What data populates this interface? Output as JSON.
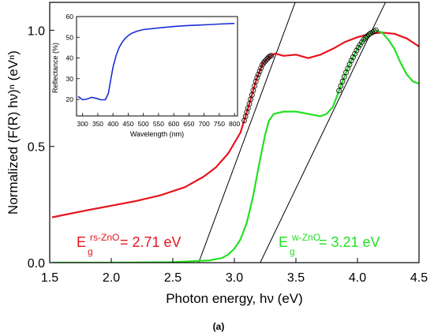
{
  "caption": "(a)",
  "colors": {
    "red": "#e8141c",
    "green": "#22e022",
    "blue": "#1a2ed6",
    "black": "#000000"
  },
  "chart_data": [
    {
      "type": "line",
      "xlabel": "Photon energy, hν (eV)",
      "ylabel": "Normalized (F(R) hν)ⁿ (eVⁿ)",
      "xlim": [
        1.5,
        4.5
      ],
      "ylim": [
        0.0,
        1.12
      ],
      "xticks": [
        "1.5",
        "2.0",
        "2.5",
        "3.0",
        "3.5",
        "4.0",
        "4.5"
      ],
      "xtick_values": [
        1.5,
        2.0,
        2.5,
        3.0,
        3.5,
        4.0,
        4.5
      ],
      "yticks": [
        "0.0",
        "0.5",
        "1.0"
      ],
      "ytick_values": [
        0.0,
        0.5,
        1.0
      ],
      "series": [
        {
          "color": "#e8141c",
          "x": [
            1.52,
            1.8,
            2.0,
            2.2,
            2.4,
            2.6,
            2.75,
            2.85,
            2.95,
            3.05,
            3.12,
            3.18,
            3.23,
            3.28,
            3.33,
            3.4,
            3.5,
            3.6,
            3.7,
            3.8,
            3.9,
            4.0,
            4.1,
            4.2,
            4.3,
            4.4,
            4.5
          ],
          "y": [
            0.195,
            0.225,
            0.245,
            0.265,
            0.29,
            0.325,
            0.37,
            0.41,
            0.47,
            0.56,
            0.68,
            0.79,
            0.855,
            0.885,
            0.9,
            0.89,
            0.895,
            0.88,
            0.895,
            0.92,
            0.95,
            0.97,
            0.985,
            0.99,
            0.985,
            0.965,
            0.93
          ]
        },
        {
          "color": "#22e022",
          "x": [
            1.52,
            2.0,
            2.5,
            2.8,
            2.9,
            2.95,
            3.0,
            3.05,
            3.1,
            3.15,
            3.2,
            3.25,
            3.28,
            3.32,
            3.4,
            3.5,
            3.6,
            3.7,
            3.75,
            3.8,
            3.85,
            3.9,
            3.95,
            4.0,
            4.05,
            4.1,
            4.15,
            4.2,
            4.25,
            4.3,
            4.35,
            4.4,
            4.45,
            4.5
          ],
          "y": [
            0.0,
            0.0,
            0.002,
            0.01,
            0.02,
            0.035,
            0.06,
            0.1,
            0.17,
            0.28,
            0.42,
            0.55,
            0.61,
            0.64,
            0.65,
            0.65,
            0.64,
            0.63,
            0.64,
            0.67,
            0.74,
            0.81,
            0.87,
            0.92,
            0.96,
            0.985,
            1.0,
            0.99,
            0.96,
            0.92,
            0.86,
            0.81,
            0.78,
            0.77
          ]
        }
      ],
      "fit_lines": [
        {
          "color": "#000000",
          "x": [
            2.71,
            3.55
          ],
          "y": [
            0.0,
            1.2
          ]
        },
        {
          "color": "#000000",
          "x": [
            3.21,
            4.3
          ],
          "y": [
            0.0,
            1.2
          ]
        }
      ],
      "fit_markers": [
        {
          "x_start": 3.08,
          "x_end": 3.3,
          "count": 22,
          "on_series": 0
        },
        {
          "x_start": 3.85,
          "x_end": 4.15,
          "count": 22,
          "on_series": 1
        }
      ],
      "annotations": [
        {
          "main": "E",
          "sub": "g",
          "sup": "rs-ZnO",
          "rest": " = 2.71 eV",
          "color": "#e8141c"
        },
        {
          "main": "E",
          "sub": "g",
          "sup": "w-ZnO",
          "rest": " = 3.21 eV",
          "color": "#22e022"
        }
      ]
    },
    {
      "type": "line",
      "xlabel": "Wavelength (nm)",
      "ylabel": "Reflectance (%)",
      "xlim": [
        280,
        810
      ],
      "ylim": [
        12,
        60
      ],
      "xticks": [
        "300",
        "350",
        "400",
        "450",
        "500",
        "550",
        "600",
        "650",
        "700",
        "750",
        "800"
      ],
      "xtick_values": [
        300,
        350,
        400,
        450,
        500,
        550,
        600,
        650,
        700,
        750,
        800
      ],
      "yticks": [
        "20",
        "30",
        "40",
        "50",
        "60"
      ],
      "ytick_values": [
        20,
        30,
        40,
        50,
        60
      ],
      "series": [
        {
          "color": "#1a2ed6",
          "x": [
            285,
            300,
            315,
            330,
            345,
            360,
            375,
            385,
            392,
            400,
            410,
            420,
            430,
            440,
            450,
            460,
            480,
            500,
            550,
            600,
            650,
            700,
            750,
            800
          ],
          "y": [
            21.5,
            19.8,
            20.2,
            21.0,
            20.5,
            19.8,
            19.8,
            23.0,
            29.0,
            35.5,
            41.0,
            45.0,
            47.5,
            49.5,
            50.8,
            51.8,
            53.0,
            53.7,
            54.5,
            55.2,
            55.7,
            56.0,
            56.4,
            56.7
          ]
        }
      ]
    }
  ]
}
